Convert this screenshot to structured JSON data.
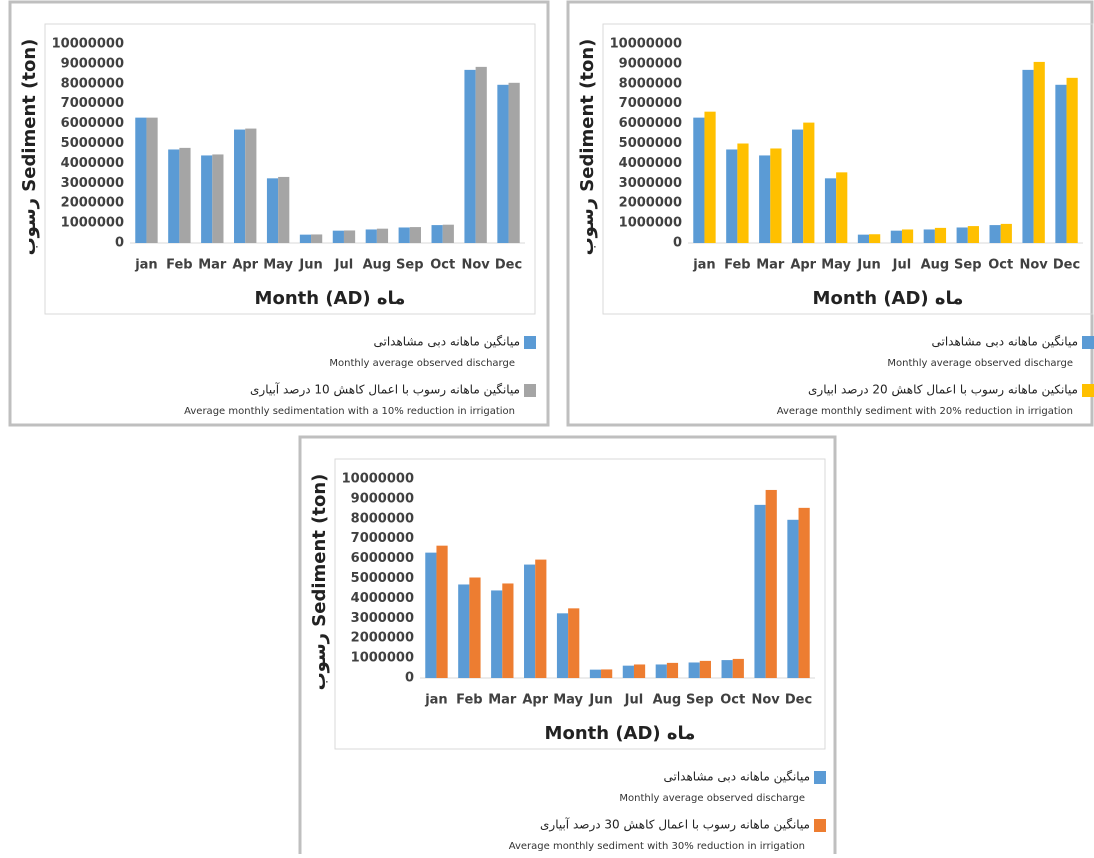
{
  "chart_data": [
    {
      "type": "bar",
      "x_label": "ماه Month (AD)",
      "y_label": "رسوب Sediment (ton)",
      "categories": [
        "jan",
        "Feb",
        "Mar",
        "Apr",
        "May",
        "Jun",
        "Jul",
        "Aug",
        "Sep",
        "Oct",
        "Nov",
        "Dec"
      ],
      "ylim": [
        0,
        10000000
      ],
      "yticks": [
        0,
        1000000,
        2000000,
        3000000,
        4000000,
        5000000,
        6000000,
        7000000,
        8000000,
        9000000,
        10000000
      ],
      "series": [
        {
          "name": "میانگین ماهانه دبی مشاهداتی",
          "description": "Monthly average observed discharge",
          "color": "#5b9bd5",
          "values": [
            6300000,
            4700000,
            4400000,
            5700000,
            3250000,
            420000,
            620000,
            680000,
            780000,
            900000,
            8700000,
            7950000
          ]
        },
        {
          "name": "میانگین ماهانه رسوب با اعمال کاهش 10 درصد آبیاری",
          "description": "Average monthly sedimentation with a 10% reduction in irrigation",
          "color": "#a5a5a5",
          "values": [
            6300000,
            4780000,
            4450000,
            5750000,
            3320000,
            430000,
            630000,
            720000,
            800000,
            920000,
            8850000,
            8050000
          ]
        }
      ]
    },
    {
      "type": "bar",
      "x_label": "ماه Month (AD)",
      "y_label": "رسوب Sediment (ton)",
      "categories": [
        "jan",
        "Feb",
        "Mar",
        "Apr",
        "May",
        "Jun",
        "Jul",
        "Aug",
        "Sep",
        "Oct",
        "Nov",
        "Dec"
      ],
      "ylim": [
        0,
        10000000
      ],
      "yticks": [
        0,
        1000000,
        2000000,
        3000000,
        4000000,
        5000000,
        6000000,
        7000000,
        8000000,
        9000000,
        10000000
      ],
      "series": [
        {
          "name": "میانگین ماهانه دبی مشاهداتی",
          "description": "Monthly average observed discharge",
          "color": "#5b9bd5",
          "values": [
            6300000,
            4700000,
            4400000,
            5700000,
            3250000,
            420000,
            620000,
            680000,
            780000,
            900000,
            8700000,
            7950000
          ]
        },
        {
          "name": "میانکین ماهانه رسوب با اعمال کاهش 20 درصد ابیاری",
          "description": "Average monthly sediment with 20% reduction in irrigation",
          "color": "#ffc000",
          "values": [
            6600000,
            5000000,
            4750000,
            6050000,
            3550000,
            440000,
            680000,
            760000,
            850000,
            960000,
            9100000,
            8300000
          ]
        }
      ]
    },
    {
      "type": "bar",
      "x_label": "ماه Month (AD)",
      "y_label": "رسوب Sediment (ton)",
      "categories": [
        "jan",
        "Feb",
        "Mar",
        "Apr",
        "May",
        "Jun",
        "Jul",
        "Aug",
        "Sep",
        "Oct",
        "Nov",
        "Dec"
      ],
      "ylim": [
        0,
        10000000
      ],
      "yticks": [
        0,
        1000000,
        2000000,
        3000000,
        4000000,
        5000000,
        6000000,
        7000000,
        8000000,
        9000000,
        10000000
      ],
      "series": [
        {
          "name": "میانگین ماهانه دبی مشاهداتی",
          "description": "Monthly average observed discharge",
          "color": "#5b9bd5",
          "values": [
            6300000,
            4700000,
            4400000,
            5700000,
            3250000,
            420000,
            620000,
            680000,
            780000,
            900000,
            8700000,
            7950000
          ]
        },
        {
          "name": "میانگین ماهانه رسوب با اعمال کاهش 30 درصد آبیاری",
          "description": "Average monthly sediment with 30% reduction in irrigation",
          "color": "#ed7d31",
          "values": [
            6650000,
            5050000,
            4750000,
            5950000,
            3500000,
            430000,
            680000,
            760000,
            860000,
            960000,
            9450000,
            8550000
          ]
        }
      ]
    }
  ]
}
